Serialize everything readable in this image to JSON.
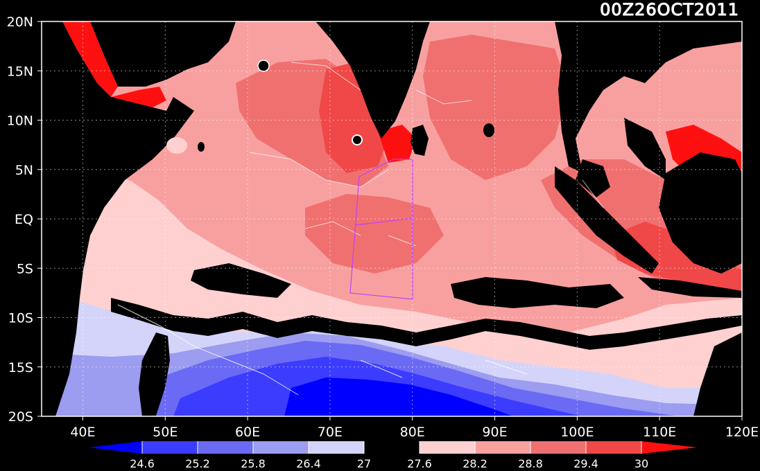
{
  "header": {
    "timestamp": "00Z26OCT2011"
  },
  "map": {
    "lon_range": [
      35,
      120
    ],
    "lat_range": [
      -20,
      20
    ],
    "lon_ticks": [
      {
        "value": 40,
        "label": "40E"
      },
      {
        "value": 50,
        "label": "50E"
      },
      {
        "value": 60,
        "label": "60E"
      },
      {
        "value": 70,
        "label": "70E"
      },
      {
        "value": 80,
        "label": "80E"
      },
      {
        "value": 90,
        "label": "90E"
      },
      {
        "value": 100,
        "label": "100E"
      },
      {
        "value": 110,
        "label": "110E"
      },
      {
        "value": 120,
        "label": "120E"
      }
    ],
    "lat_ticks": [
      {
        "value": 20,
        "label": "20N"
      },
      {
        "value": 15,
        "label": "15N"
      },
      {
        "value": 10,
        "label": "10N"
      },
      {
        "value": 5,
        "label": "5N"
      },
      {
        "value": 0,
        "label": "EQ"
      },
      {
        "value": -5,
        "label": "5S"
      },
      {
        "value": -10,
        "label": "10S"
      },
      {
        "value": -15,
        "label": "15S"
      },
      {
        "value": -20,
        "label": "20S"
      }
    ],
    "grid": "dotted",
    "box_color": "#c040ff"
  },
  "colorbar": {
    "levels": [
      "24.6",
      "25.2",
      "25.8",
      "26.4",
      "27",
      "27.6",
      "28.2",
      "28.8",
      "29.4",
      "30"
    ],
    "colors": [
      "#0000ff",
      "#3c3cff",
      "#6a6af5",
      "#9c9cf0",
      "#d4d4fa",
      "#000000",
      "#ffd0d0",
      "#f8a0a0",
      "#f07070",
      "#f04848",
      "#ff1010"
    ]
  },
  "colors": {
    "background": "#000000",
    "land": "#000000",
    "warm_low": "#ffd0d0",
    "warm_mid": "#f8a0a0",
    "warm_high": "#f07070",
    "warm_top": "#f04848",
    "warm_max": "#ff1010",
    "cool_1": "#d4d4fa",
    "cool_2": "#9c9cf0",
    "cool_3": "#6a6af5",
    "cool_4": "#3c3cff",
    "cool_5": "#0000ff"
  }
}
